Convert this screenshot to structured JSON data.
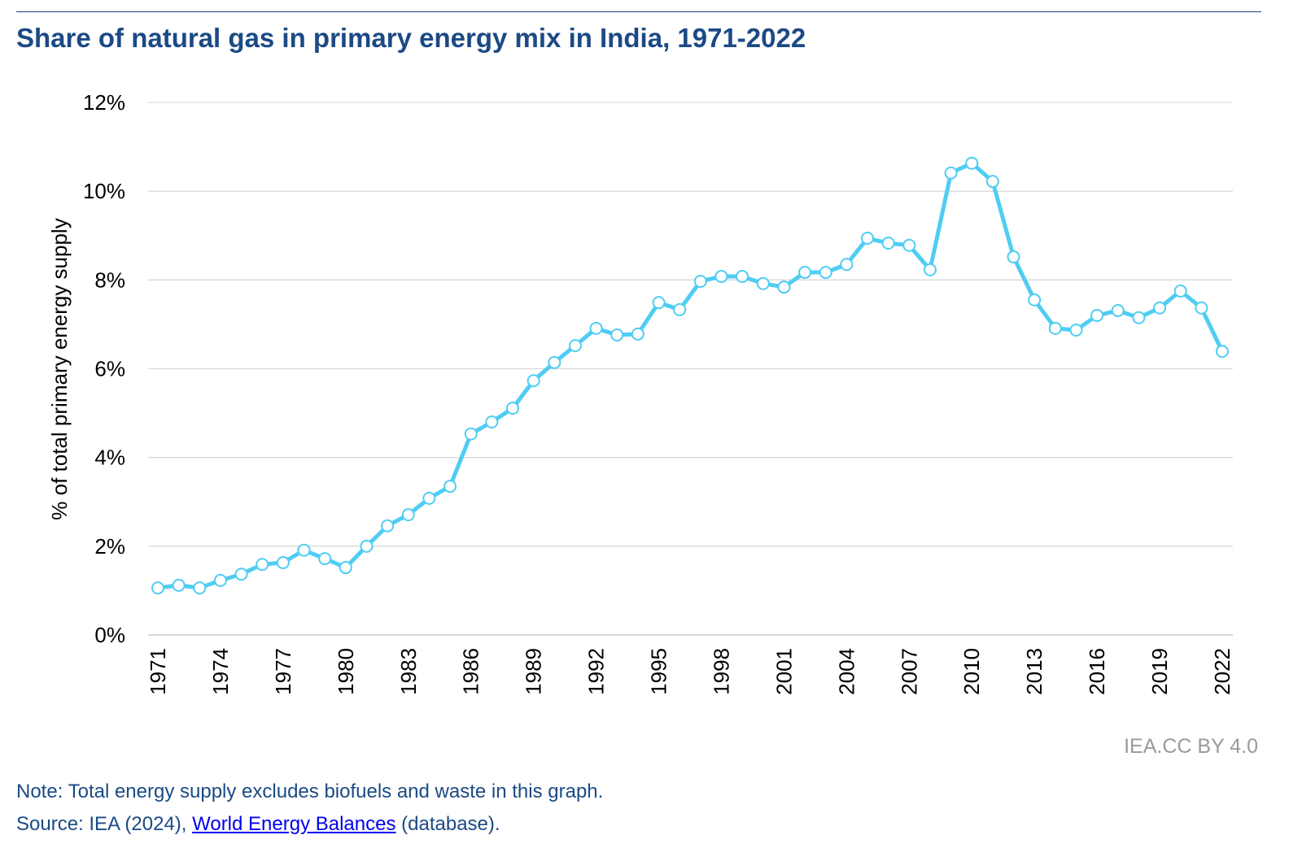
{
  "title": "Share of natural gas in primary energy mix in India, 1971-2022",
  "credit": "IEA.CC BY 4.0",
  "note": "Note: Total energy supply excludes biofuels and waste in this graph.",
  "source": {
    "prefix": "Source: IEA (2024), ",
    "link": "World Energy Balances",
    "suffix": " (database)."
  },
  "colors": {
    "line": "#4fcdf3",
    "title": "#1b4a85",
    "grid": "#d9d9d9"
  },
  "chart_data": {
    "type": "line",
    "title": "Share of natural gas in primary energy mix in India, 1971-2022",
    "xlabel": "",
    "ylabel": "% of total primary energy supply",
    "ylim": [
      0,
      12
    ],
    "yticks": [
      0,
      2,
      4,
      6,
      8,
      10,
      12
    ],
    "ytick_labels": [
      "0%",
      "2%",
      "4%",
      "6%",
      "8%",
      "10%",
      "12%"
    ],
    "xtick_labels": [
      "1971",
      "1974",
      "1977",
      "1980",
      "1983",
      "1986",
      "1989",
      "1992",
      "1995",
      "1998",
      "2001",
      "2004",
      "2007",
      "2010",
      "2013",
      "2016",
      "2019",
      "2022"
    ],
    "grid": true,
    "x": [
      1971,
      1972,
      1973,
      1974,
      1975,
      1976,
      1977,
      1978,
      1979,
      1980,
      1981,
      1982,
      1983,
      1984,
      1985,
      1986,
      1987,
      1988,
      1989,
      1990,
      1991,
      1992,
      1993,
      1994,
      1995,
      1996,
      1997,
      1998,
      1999,
      2000,
      2001,
      2002,
      2003,
      2004,
      2005,
      2006,
      2007,
      2008,
      2009,
      2010,
      2011,
      2012,
      2013,
      2014,
      2015,
      2016,
      2017,
      2018,
      2019,
      2020,
      2021,
      2022
    ],
    "series": [
      {
        "name": "Natural gas share",
        "values": [
          1.06,
          1.12,
          1.06,
          1.23,
          1.37,
          1.59,
          1.63,
          1.91,
          1.72,
          1.52,
          2.0,
          2.46,
          2.71,
          3.08,
          3.35,
          4.53,
          4.8,
          5.11,
          5.73,
          6.14,
          6.52,
          6.91,
          6.76,
          6.78,
          7.49,
          7.33,
          7.97,
          8.08,
          8.08,
          7.92,
          7.84,
          8.17,
          8.17,
          8.35,
          8.94,
          8.83,
          8.78,
          8.23,
          10.41,
          10.63,
          10.22,
          8.52,
          7.55,
          6.91,
          6.87,
          7.2,
          7.31,
          7.15,
          7.37,
          7.75,
          7.37,
          6.39
        ]
      }
    ]
  }
}
